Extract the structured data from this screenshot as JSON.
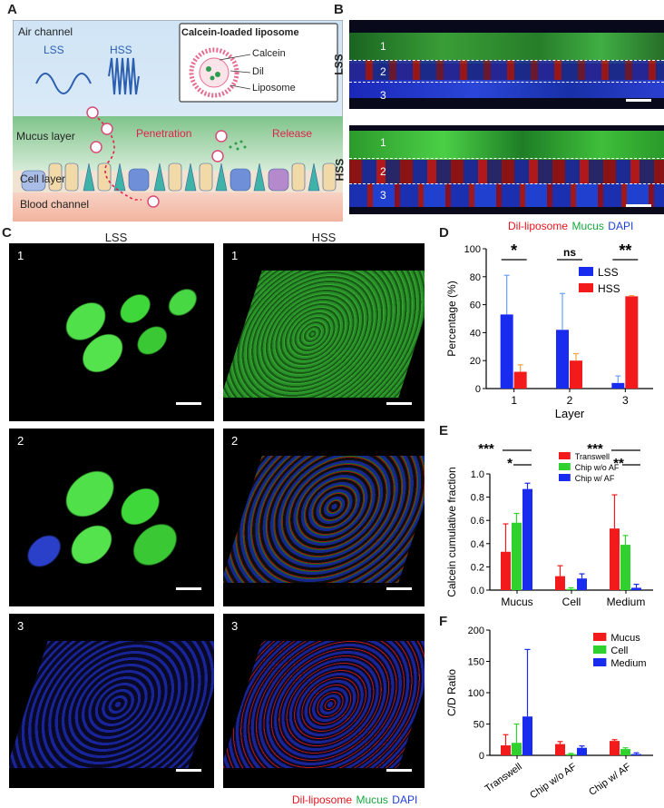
{
  "panel_labels": {
    "a": "A",
    "b": "B",
    "c": "C",
    "d": "D",
    "e": "E",
    "f": "F"
  },
  "schematic": {
    "air_channel": "Air channel",
    "lss": "LSS",
    "hss": "HSS",
    "liposome_box_title": "Calcein-loaded liposome",
    "calcein": "Calcein",
    "dil": "Dil",
    "liposome": "Liposome",
    "mucus_layer": "Mucus layer",
    "penetration": "Penetration",
    "release": "Release",
    "cell_layer": "Cell layer",
    "blood_channel": "Blood channel"
  },
  "panel_b": {
    "lss": "LSS",
    "hss": "HSS",
    "layers": [
      "1",
      "2",
      "3"
    ],
    "legend": [
      {
        "label": "Dil-liposome",
        "color": "#e8141e"
      },
      {
        "label": "Mucus",
        "color": "#14a83c"
      },
      {
        "label": "DAPI",
        "color": "#1f3fd6"
      }
    ]
  },
  "panel_c": {
    "col_lss": "LSS",
    "col_hss": "HSS",
    "row_numbers": [
      "1",
      "2",
      "3"
    ],
    "legend": [
      {
        "label": "Dil-liposome",
        "color": "#e8141e"
      },
      {
        "label": "Mucus",
        "color": "#14a83c"
      },
      {
        "label": "DAPI",
        "color": "#1f3fd6"
      }
    ]
  },
  "colors": {
    "lss_blue": "#1a2bf0",
    "hss_red": "#f21a1a",
    "green": "#2fd12f",
    "error_lss": "#6aa0ff",
    "error_hss": "#f5a23c"
  },
  "chart_data": [
    {
      "id": "D",
      "type": "bar",
      "categories": [
        "1",
        "2",
        "3"
      ],
      "series": [
        {
          "name": "LSS",
          "values": [
            53,
            42,
            4
          ],
          "errors": [
            28,
            26,
            5
          ]
        },
        {
          "name": "HSS",
          "values": [
            12,
            20,
            66
          ],
          "errors": [
            5,
            5,
            0.5
          ]
        }
      ],
      "xlabel": "Layer",
      "ylabel": "Percentage (%)",
      "ylim": [
        0,
        100
      ],
      "yticks": [
        "0",
        "20",
        "40",
        "60",
        "80",
        "100"
      ],
      "significance": [
        "*",
        "ns",
        "**"
      ],
      "legend_position": "top-right"
    },
    {
      "id": "E",
      "type": "bar",
      "categories": [
        "Mucus",
        "Cell",
        "Medium"
      ],
      "series": [
        {
          "name": "Transwell",
          "values": [
            0.33,
            0.12,
            0.53
          ],
          "errors": [
            0.24,
            0.09,
            0.29
          ]
        },
        {
          "name": "Chip w/o AF",
          "values": [
            0.58,
            0.01,
            0.39
          ],
          "errors": [
            0.08,
            0.01,
            0.08
          ]
        },
        {
          "name": "Chip w/ AF",
          "values": [
            0.87,
            0.1,
            0.02
          ],
          "errors": [
            0.05,
            0.04,
            0.03
          ]
        }
      ],
      "ylabel": "Calcein cumulative fraction",
      "ylim": [
        0,
        1.0
      ],
      "yticks": [
        "0.0",
        "0.2",
        "0.4",
        "0.6",
        "0.8",
        "1.0"
      ],
      "significance": [
        "***",
        "*",
        "***",
        "**"
      ],
      "legend_position": "top-right"
    },
    {
      "id": "F",
      "type": "bar",
      "categories": [
        "Transwell",
        "Chip w/o AF",
        "Chip w/ AF"
      ],
      "series": [
        {
          "name": "Mucus",
          "values": [
            16,
            18,
            23
          ],
          "errors": [
            17,
            4,
            2
          ]
        },
        {
          "name": "Cell",
          "values": [
            20,
            2,
            10
          ],
          "errors": [
            30,
            1,
            2
          ]
        },
        {
          "name": "Medium",
          "values": [
            62,
            12,
            2
          ],
          "errors": [
            107,
            3,
            2
          ]
        }
      ],
      "ylabel": "C/D Ratio",
      "ylim": [
        0,
        200
      ],
      "yticks": [
        "0",
        "50",
        "100",
        "150",
        "200"
      ],
      "legend_position": "top-right"
    }
  ]
}
